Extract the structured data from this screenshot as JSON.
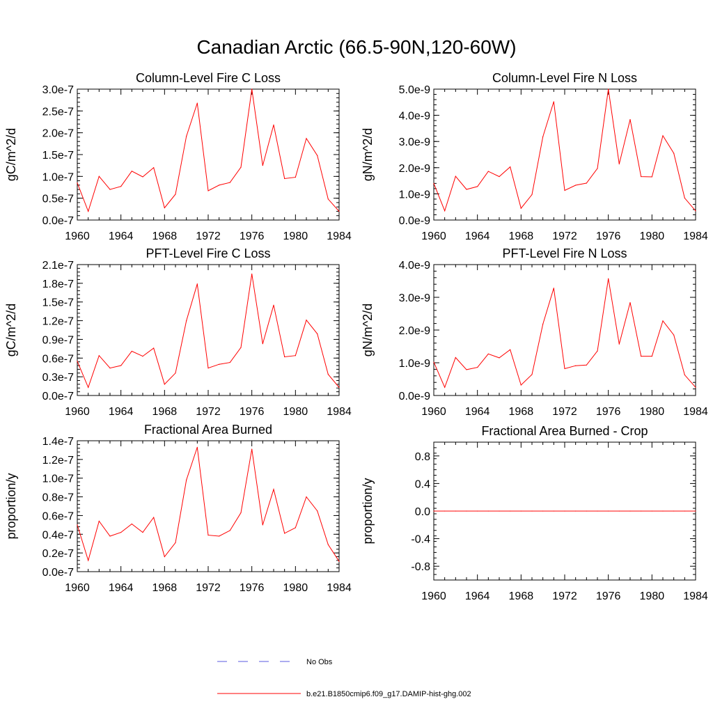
{
  "title": "Canadian Arctic (66.5-90N,120-60W)",
  "chart_data": [
    {
      "type": "line",
      "title": "Column-Level Fire C Loss",
      "ylabel": "gC/m^2/d",
      "x": [
        1960,
        1961,
        1962,
        1963,
        1964,
        1965,
        1966,
        1967,
        1968,
        1969,
        1970,
        1971,
        1972,
        1973,
        1974,
        1975,
        1976,
        1977,
        1978,
        1979,
        1980,
        1981,
        1982,
        1983,
        1984
      ],
      "xticks": [
        "1960",
        "1964",
        "1968",
        "1972",
        "1976",
        "1980",
        "1984"
      ],
      "xlim": [
        1960,
        1984
      ],
      "ylim": [
        0,
        3e-07
      ],
      "yticks": [
        0,
        5e-08,
        1e-07,
        1.5e-07,
        2e-07,
        2.5e-07,
        3e-07
      ],
      "ytick_labels": [
        "0.0e-7",
        "0.5e-7",
        "1.0e-7",
        "1.5e-7",
        "2.0e-7",
        "2.5e-7",
        "3.0e-7"
      ],
      "series": [
        {
          "color": "#ff0000",
          "values": [
            8.5e-08,
            2e-08,
            1e-07,
            7e-08,
            7.7e-08,
            1.12e-07,
            9.9e-08,
            1.2e-07,
            2.8e-08,
            5.9e-08,
            1.92e-07,
            2.68e-07,
            6.7e-08,
            8e-08,
            8.6e-08,
            1.21e-07,
            3e-07,
            1.25e-07,
            2.18e-07,
            9.5e-08,
            9.8e-08,
            1.87e-07,
            1.48e-07,
            4.8e-08,
            2e-08
          ]
        }
      ]
    },
    {
      "type": "line",
      "title": "Column-Level Fire N Loss",
      "ylabel": "gN/m^2/d",
      "x": [
        1960,
        1961,
        1962,
        1963,
        1964,
        1965,
        1966,
        1967,
        1968,
        1969,
        1970,
        1971,
        1972,
        1973,
        1974,
        1975,
        1976,
        1977,
        1978,
        1979,
        1980,
        1981,
        1982,
        1983,
        1984
      ],
      "xticks": [
        "1960",
        "1964",
        "1968",
        "1972",
        "1976",
        "1980",
        "1984"
      ],
      "xlim": [
        1960,
        1984
      ],
      "ylim": [
        0,
        5e-09
      ],
      "yticks": [
        0,
        1e-09,
        2e-09,
        3e-09,
        4e-09,
        5e-09
      ],
      "ytick_labels": [
        "0.0e-9",
        "1.0e-9",
        "2.0e-9",
        "3.0e-9",
        "4.0e-9",
        "5.0e-9"
      ],
      "series": [
        {
          "color": "#ff0000",
          "values": [
            1.4e-09,
            3.5e-10,
            1.67e-09,
            1.17e-09,
            1.28e-09,
            1.86e-09,
            1.66e-09,
            2.03e-09,
            4.5e-10,
            9.7e-10,
            3.18e-09,
            4.52e-09,
            1.13e-09,
            1.33e-09,
            1.41e-09,
            1.97e-09,
            5e-09,
            2.14e-09,
            3.84e-09,
            1.66e-09,
            1.65e-09,
            3.22e-09,
            2.55e-09,
            8.4e-10,
            3.5e-10
          ]
        }
      ]
    },
    {
      "type": "line",
      "title": "PFT-Level Fire C Loss",
      "ylabel": "gC/m^2/d",
      "x": [
        1960,
        1961,
        1962,
        1963,
        1964,
        1965,
        1966,
        1967,
        1968,
        1969,
        1970,
        1971,
        1972,
        1973,
        1974,
        1975,
        1976,
        1977,
        1978,
        1979,
        1980,
        1981,
        1982,
        1983,
        1984
      ],
      "xticks": [
        "1960",
        "1964",
        "1968",
        "1972",
        "1976",
        "1980",
        "1984"
      ],
      "xlim": [
        1960,
        1984
      ],
      "ylim": [
        0,
        2.1e-07
      ],
      "yticks": [
        0,
        3e-08,
        6e-08,
        9e-08,
        1.2e-07,
        1.5e-07,
        1.8e-07,
        2.1e-07
      ],
      "ytick_labels": [
        "0.0e-7",
        "0.3e-7",
        "0.6e-7",
        "0.9e-7",
        "1.2e-7",
        "1.5e-7",
        "1.8e-7",
        "2.1e-7"
      ],
      "series": [
        {
          "color": "#ff0000",
          "values": [
            5.5e-08,
            1.3e-08,
            6.4e-08,
            4.4e-08,
            4.8e-08,
            7.1e-08,
            6.3e-08,
            7.6e-08,
            1.8e-08,
            3.6e-08,
            1.2e-07,
            1.79e-07,
            4.4e-08,
            5e-08,
            5.3e-08,
            7.7e-08,
            1.95e-07,
            8.3e-08,
            1.45e-07,
            6.2e-08,
            6.4e-08,
            1.21e-07,
            9.9e-08,
            3.4e-08,
            1.3e-08
          ]
        }
      ]
    },
    {
      "type": "line",
      "title": "PFT-Level Fire N Loss",
      "ylabel": "gN/m^2/d",
      "x": [
        1960,
        1961,
        1962,
        1963,
        1964,
        1965,
        1966,
        1967,
        1968,
        1969,
        1970,
        1971,
        1972,
        1973,
        1974,
        1975,
        1976,
        1977,
        1978,
        1979,
        1980,
        1981,
        1982,
        1983,
        1984
      ],
      "xticks": [
        "1960",
        "1964",
        "1968",
        "1972",
        "1976",
        "1980",
        "1984"
      ],
      "xlim": [
        1960,
        1984
      ],
      "ylim": [
        0,
        4e-09
      ],
      "yticks": [
        0,
        1e-09,
        2e-09,
        3e-09,
        4e-09
      ],
      "ytick_labels": [
        "0.0e-9",
        "1.0e-9",
        "2.0e-9",
        "3.0e-9",
        "4.0e-9"
      ],
      "series": [
        {
          "color": "#ff0000",
          "values": [
            1.02e-09,
            2.5e-10,
            1.16e-09,
            7.9e-10,
            8.6e-10,
            1.27e-09,
            1.15e-09,
            1.4e-09,
            3.2e-10,
            6.4e-10,
            2.18e-09,
            3.28e-09,
            8.2e-10,
            9.1e-10,
            9.3e-10,
            1.36e-09,
            3.57e-09,
            1.57e-09,
            2.84e-09,
            1.2e-09,
            1.2e-09,
            2.28e-09,
            1.85e-09,
            6.3e-10,
            2.5e-10
          ]
        }
      ]
    },
    {
      "type": "line",
      "title": "Fractional Area Burned",
      "ylabel": "proportion/y",
      "x": [
        1960,
        1961,
        1962,
        1963,
        1964,
        1965,
        1966,
        1967,
        1968,
        1969,
        1970,
        1971,
        1972,
        1973,
        1974,
        1975,
        1976,
        1977,
        1978,
        1979,
        1980,
        1981,
        1982,
        1983,
        1984
      ],
      "xticks": [
        "1960",
        "1964",
        "1968",
        "1972",
        "1976",
        "1980",
        "1984"
      ],
      "xlim": [
        1960,
        1984
      ],
      "ylim": [
        0,
        1.4e-07
      ],
      "yticks": [
        0,
        2e-08,
        4e-08,
        6e-08,
        8e-08,
        1e-07,
        1.2e-07,
        1.4e-07
      ],
      "ytick_labels": [
        "0.0e-7",
        "0.2e-7",
        "0.4e-7",
        "0.6e-7",
        "0.8e-7",
        "1.0e-7",
        "1.2e-7",
        "1.4e-7"
      ],
      "series": [
        {
          "color": "#ff0000",
          "values": [
            5e-08,
            1.2e-08,
            5.4e-08,
            3.8e-08,
            4.2e-08,
            5.1e-08,
            4.2e-08,
            5.8e-08,
            1.6e-08,
            3.1e-08,
            9.8e-08,
            1.33e-07,
            3.9e-08,
            3.8e-08,
            4.4e-08,
            6.3e-08,
            1.31e-07,
            5e-08,
            8.8e-08,
            4.1e-08,
            4.7e-08,
            8e-08,
            6.5e-08,
            2.9e-08,
            1.1e-08
          ]
        }
      ]
    },
    {
      "type": "line",
      "title": "Fractional Area Burned - Crop",
      "ylabel": "proportion/y",
      "x": [
        1960,
        1961,
        1962,
        1963,
        1964,
        1965,
        1966,
        1967,
        1968,
        1969,
        1970,
        1971,
        1972,
        1973,
        1974,
        1975,
        1976,
        1977,
        1978,
        1979,
        1980,
        1981,
        1982,
        1983,
        1984
      ],
      "xticks": [
        "1960",
        "1964",
        "1968",
        "1972",
        "1976",
        "1980",
        "1984"
      ],
      "xlim": [
        1960,
        1984
      ],
      "ylim": [
        -1.0,
        1.0
      ],
      "yticks": [
        -0.8,
        -0.4,
        0.0,
        0.4,
        0.8
      ],
      "ytick_labels": [
        "-0.8",
        "-0.4",
        "0.0",
        "0.4",
        "0.8"
      ],
      "series": [
        {
          "color": "#ff0000",
          "values": [
            0,
            0,
            0,
            0,
            0,
            0,
            0,
            0,
            0,
            0,
            0,
            0,
            0,
            0,
            0,
            0,
            0,
            0,
            0,
            0,
            0,
            0,
            0,
            0,
            0
          ]
        }
      ]
    }
  ],
  "legend": [
    {
      "label": "No Obs",
      "color": "#5a5ae0",
      "style": "dashed"
    },
    {
      "label": "b.e21.B1850cmip6.f09_g17.DAMIP-hist-ghg.002",
      "color": "#ff0000",
      "style": "solid"
    }
  ]
}
